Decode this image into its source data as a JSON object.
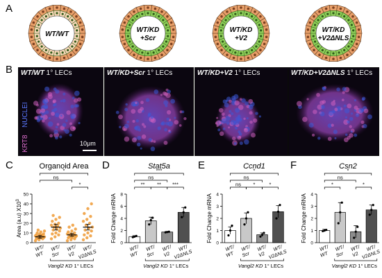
{
  "panel_letters": [
    "A",
    "B",
    "C",
    "D",
    "E",
    "F"
  ],
  "organoids": [
    {
      "label_line1": "WT/WT",
      "label_line2": "",
      "outer_color": "#e9a06a",
      "inner_color": "#f7d7b8"
    },
    {
      "label_line1": "WT/KD",
      "label_line2": "+Scr",
      "outer_color": "#e9a06a",
      "inner_color": "#8fcf5a"
    },
    {
      "label_line1": "WT/KD",
      "label_line2": "+V2",
      "outer_color": "#e9a06a",
      "inner_color": "#8fcf5a"
    },
    {
      "label_line1": "WT/KD",
      "label_line2": "+V2ΔNLS",
      "outer_color": "#e9a06a",
      "inner_color": "#8fcf5a"
    }
  ],
  "micrographs": [
    {
      "title_italic": "WT/WT",
      "title_rest": " 1° LECs"
    },
    {
      "title_italic": "WT/KD+Scr",
      "title_rest": " 1° LECs"
    },
    {
      "title_italic": "WT/KD+V2",
      "title_rest": " 1° LECs"
    },
    {
      "title_italic": "WT/KD+V2ΔNLS",
      "title_rest": " 1° LECs"
    }
  ],
  "micro_stain_labels": {
    "krt8": "KRT8",
    "nuclei": "NUCLEI"
  },
  "scale_bar_label": "10μm",
  "colors": {
    "krt8": "#d060c0",
    "nuclei": "#3d5ad8",
    "dot_orange": "#f0a040",
    "bar_light": "#c8c8c8",
    "bar_mid": "#8c8c8c",
    "bar_dark": "#505050"
  },
  "chart_data": [
    {
      "panel": "C",
      "type": "scatter",
      "title": "Organoid Area",
      "ylabel": "Area (a.u) X10",
      "ylabel_superscript": "3",
      "ylim": [
        0,
        50
      ],
      "yticks": [
        0,
        10,
        20,
        30,
        40,
        50
      ],
      "categories": [
        "WT/WT",
        "WT/Scr",
        "WT/V2",
        "WT/V2ΔNLS"
      ],
      "means": [
        6,
        16,
        8,
        16
      ],
      "sem": [
        1.5,
        3,
        1.5,
        3
      ],
      "points": [
        [
          2,
          3,
          4,
          4,
          5,
          5,
          5,
          6,
          6,
          6,
          7,
          7,
          7,
          8,
          8,
          9,
          9,
          10,
          11,
          12,
          13
        ],
        [
          4,
          6,
          8,
          9,
          10,
          12,
          13,
          14,
          15,
          16,
          17,
          18,
          19,
          20,
          22,
          24,
          26,
          28
        ],
        [
          2,
          3,
          4,
          5,
          5,
          6,
          6,
          7,
          7,
          8,
          8,
          9,
          9,
          10,
          11,
          12,
          14,
          16,
          18
        ],
        [
          3,
          5,
          7,
          8,
          10,
          12,
          13,
          15,
          16,
          18,
          20,
          22,
          24,
          27,
          30,
          35,
          40
        ]
      ],
      "significance": [
        {
          "from": 0,
          "to": 3,
          "label": "*"
        },
        {
          "from": 0,
          "to": 2,
          "label": "ns"
        },
        {
          "from": 2,
          "to": 3,
          "label": "*"
        }
      ],
      "x_group_label": "Vangl2 KD 1° LECs"
    },
    {
      "panel": "D",
      "type": "bar",
      "title": "Stat5a",
      "ylabel": "Fold Change mRNA",
      "ylim": [
        0,
        8
      ],
      "yticks": [
        0,
        2,
        4,
        6,
        8
      ],
      "categories": [
        "WT/WT",
        "WT/Scr",
        "WT/V2",
        "WT/V2ΔNLS"
      ],
      "values": [
        1,
        3.6,
        1.75,
        5
      ],
      "sem": [
        0.15,
        0.6,
        0.1,
        0.8
      ],
      "points": [
        [
          0.9,
          1.0,
          1.1
        ],
        [
          3.0,
          3.7,
          4.1
        ],
        [
          1.7,
          1.75,
          1.8
        ],
        [
          4.2,
          5.0,
          5.8
        ]
      ],
      "significance": [
        {
          "from": 0,
          "to": 3,
          "label": "***"
        },
        {
          "from": 0,
          "to": 2,
          "label": "ns"
        },
        {
          "from": 0,
          "to": 1,
          "label": "**"
        },
        {
          "from": 1,
          "to": 2,
          "label": "**"
        },
        {
          "from": 2,
          "to": 3,
          "label": "***"
        }
      ],
      "x_group_label": "Vangl2 KD 1° LECs"
    },
    {
      "panel": "E",
      "type": "bar",
      "title": "Ccnd1",
      "ylabel": "Fold Change mRNA",
      "ylim": [
        0,
        4
      ],
      "yticks": [
        0,
        1,
        2,
        3,
        4
      ],
      "categories": [
        "WT/WT",
        "WT/Scr",
        "WT/V2",
        "WT/V2ΔNLS"
      ],
      "values": [
        1,
        2,
        0.65,
        2.55
      ],
      "sem": [
        0.3,
        0.45,
        0.15,
        0.5
      ],
      "points": [
        [
          0.6,
          1.0,
          1.4
        ],
        [
          1.5,
          2.0,
          2.5
        ],
        [
          0.5,
          0.65,
          0.8
        ],
        [
          2.0,
          2.55,
          3.1
        ]
      ],
      "significance": [
        {
          "from": 0,
          "to": 3,
          "label": "*"
        },
        {
          "from": 0,
          "to": 2,
          "label": "ns"
        },
        {
          "from": 0,
          "to": 1,
          "label": "ns"
        },
        {
          "from": 1,
          "to": 2,
          "label": "*"
        },
        {
          "from": 2,
          "to": 3,
          "label": "*"
        }
      ],
      "x_group_label": "Vangl2 KD 1° LECs"
    },
    {
      "panel": "F",
      "type": "bar",
      "title": "Csn2",
      "ylabel": "Fold Change mRNA",
      "ylim": [
        0,
        4
      ],
      "yticks": [
        0,
        1,
        2,
        3,
        4
      ],
      "categories": [
        "WT/WT",
        "WT/Scr",
        "WT/V2",
        "WT/V2ΔNLS"
      ],
      "values": [
        1,
        2.5,
        0.9,
        2.7
      ],
      "sem": [
        0.1,
        0.8,
        0.5,
        0.4
      ],
      "points": [
        [
          0.95,
          1.0,
          1.05
        ],
        [
          1.6,
          2.5,
          3.3
        ],
        [
          0.4,
          0.9,
          1.3
        ],
        [
          2.3,
          2.7,
          3.1
        ]
      ],
      "significance": [
        {
          "from": 0,
          "to": 3,
          "label": "*"
        },
        {
          "from": 0,
          "to": 2,
          "label": "ns"
        },
        {
          "from": 0,
          "to": 1,
          "label": "*"
        },
        {
          "from": 2,
          "to": 3,
          "label": "*"
        }
      ],
      "x_group_label": "Vangl2 KD 1° LECs"
    }
  ]
}
